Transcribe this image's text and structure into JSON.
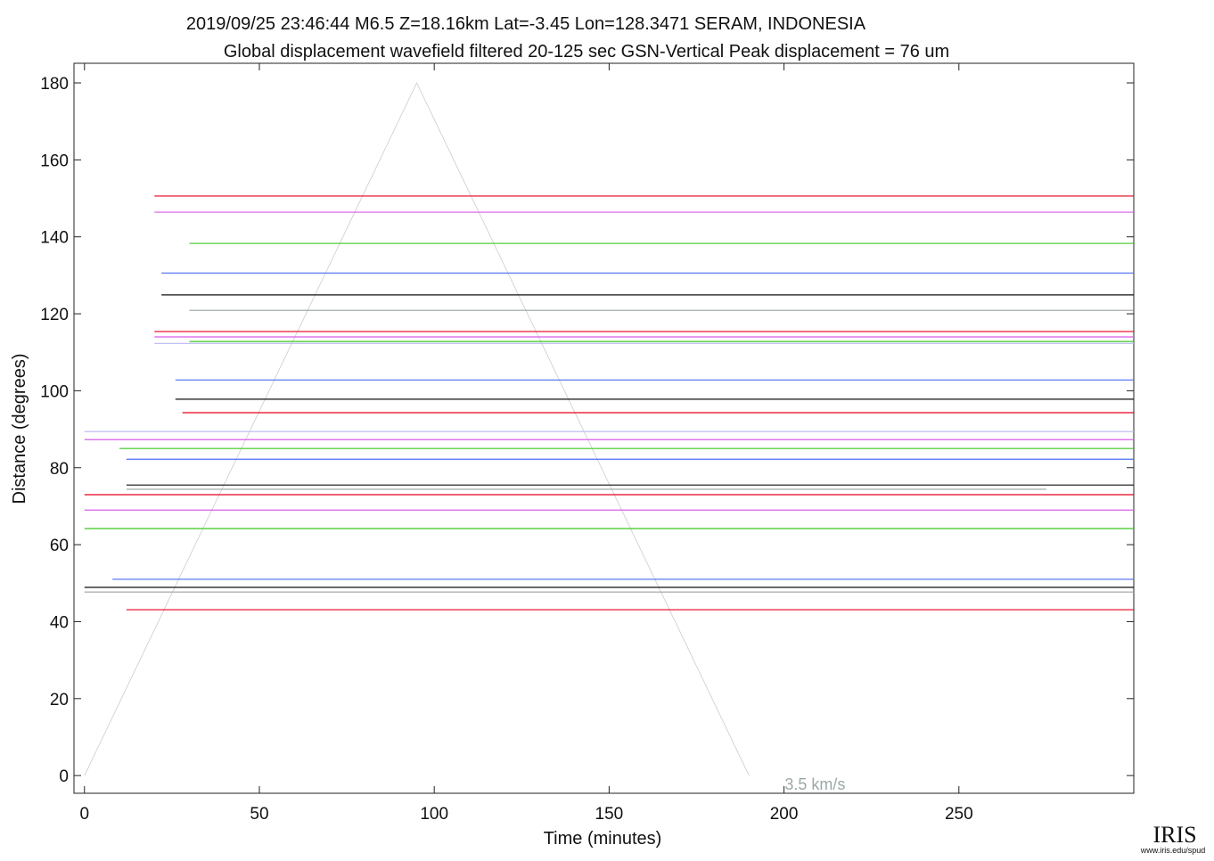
{
  "chart_data": {
    "type": "record-section",
    "title": "2019/09/25  23:46:44  M6.5  Z=18.16km  Lat=-3.45 Lon=128.3471  SERAM, INDONESIA",
    "subtitle": "Global displacement wavefield     filtered 20-125 sec    GSN-Vertical    Peak displacement =  76 um",
    "x_label": "Time (minutes)",
    "y_label": "Distance (degrees)",
    "xlim": [
      -3,
      300
    ],
    "ylim": [
      -4.6,
      185.1
    ],
    "xticks": [
      0,
      50,
      100,
      150,
      200,
      250
    ],
    "yticks": [
      0,
      20,
      40,
      60,
      80,
      100,
      120,
      140,
      160,
      180
    ],
    "traces": [
      {
        "color": "#e8001c",
        "distance": 150.6,
        "start": 20,
        "end": 300
      },
      {
        "color": "#d85ce8",
        "distance": 146.4,
        "start": 20,
        "end": 300
      },
      {
        "color": "#3cc81e",
        "distance": 138.3,
        "start": 30,
        "end": 300
      },
      {
        "color": "#4a6ef0",
        "distance": 130.6,
        "start": 22,
        "end": 300
      },
      {
        "color": "#101010",
        "distance": 124.9,
        "start": 22,
        "end": 300
      },
      {
        "color": "#9aa0a0",
        "distance": 120.9,
        "start": 30,
        "end": 300
      },
      {
        "color": "#e8001c",
        "distance": 115.4,
        "start": 20,
        "end": 300
      },
      {
        "color": "#d85ce8",
        "distance": 114.0,
        "start": 20,
        "end": 300
      },
      {
        "color": "#3cc81e",
        "distance": 112.8,
        "start": 30,
        "end": 300
      },
      {
        "color": "#b8b8f0",
        "distance": 112.3,
        "start": 20,
        "end": 300
      },
      {
        "color": "#4a6ef0",
        "distance": 102.8,
        "start": 26,
        "end": 300
      },
      {
        "color": "#101010",
        "distance": 97.8,
        "start": 26,
        "end": 300
      },
      {
        "color": "#e8001c",
        "distance": 94.3,
        "start": 28,
        "end": 300
      },
      {
        "color": "#b8b8f0",
        "distance": 89.4,
        "start": 0,
        "end": 300
      },
      {
        "color": "#d85ce8",
        "distance": 87.3,
        "start": 0,
        "end": 300
      },
      {
        "color": "#3cc81e",
        "distance": 85.0,
        "start": 10,
        "end": 300
      },
      {
        "color": "#4a6ef0",
        "distance": 82.2,
        "start": 12,
        "end": 300
      },
      {
        "color": "#101010",
        "distance": 75.5,
        "start": 12,
        "end": 300
      },
      {
        "color": "#9aa0a0",
        "distance": 74.4,
        "start": 12,
        "end": 275
      },
      {
        "color": "#e8001c",
        "distance": 73.0,
        "start": 0,
        "end": 300
      },
      {
        "color": "#d85ce8",
        "distance": 69.0,
        "start": 0,
        "end": 300
      },
      {
        "color": "#3cc81e",
        "distance": 64.2,
        "start": 0,
        "end": 300
      },
      {
        "color": "#4a6ef0",
        "distance": 51.0,
        "start": 8,
        "end": 300
      },
      {
        "color": "#101010",
        "distance": 48.9,
        "start": 0,
        "end": 300
      },
      {
        "color": "#9aa0a0",
        "distance": 47.7,
        "start": 0,
        "end": 300
      },
      {
        "color": "#e8001c",
        "distance": 43.1,
        "start": 12,
        "end": 300
      }
    ],
    "velocity_line": {
      "label": "3.5 km/s",
      "x": [
        0,
        95,
        190
      ],
      "y": [
        0,
        180,
        0
      ]
    },
    "logo": "IRIS",
    "logo_url": "www.iris.edu/spud"
  }
}
